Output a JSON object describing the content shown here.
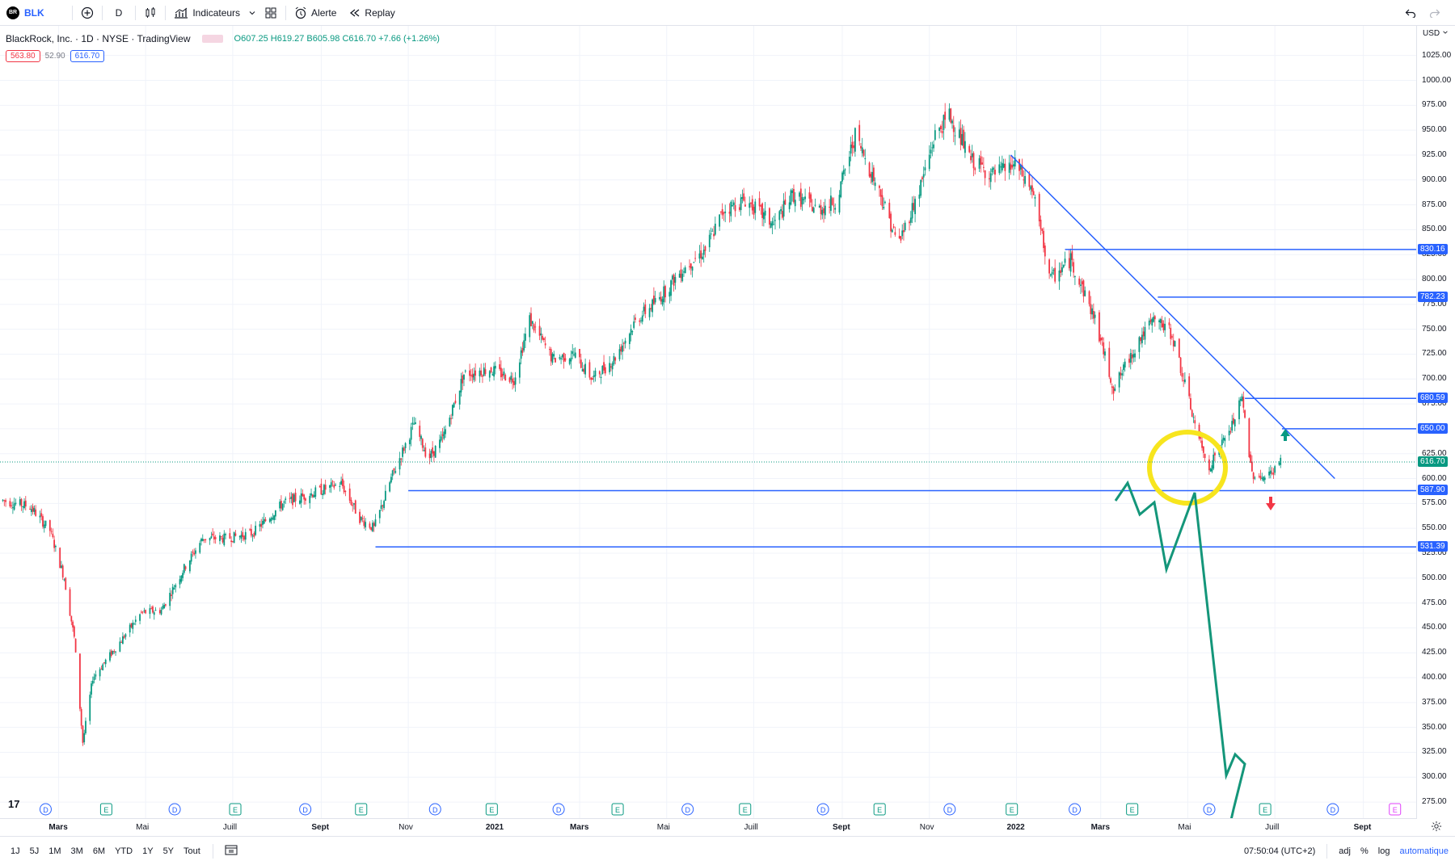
{
  "toolbar": {
    "symbol_logo": "BR",
    "symbol": "BLK",
    "add_icon": "plus-circle-icon",
    "interval": "D",
    "chart_type_icon": "candles-icon",
    "indicators_label": "Indicateurs",
    "templates_icon": "grid-icon",
    "alert_label": "Alerte",
    "replay_label": "Replay",
    "undo_icon": "undo-icon",
    "redo_icon": "redo-icon"
  },
  "legend": {
    "name": "BlackRock, Inc. · 1D · NYSE · TradingView",
    "ohlc": "O607.25 H619.27 B605.98 C616.70 +7.66 (+1.26%)",
    "sell": "563.80",
    "spread": "52.90",
    "buy": "616.70"
  },
  "price_axis": {
    "currency": "USD",
    "ticks": [
      "1025.00",
      "1000.00",
      "975.00",
      "950.00",
      "925.00",
      "900.00",
      "875.00",
      "850.00",
      "825.00",
      "800.00",
      "775.00",
      "750.00",
      "725.00",
      "700.00",
      "675.00",
      "650.00",
      "625.00",
      "600.00",
      "575.00",
      "550.00",
      "525.00",
      "500.00",
      "475.00",
      "450.00",
      "425.00",
      "400.00",
      "375.00",
      "350.00",
      "325.00",
      "300.00",
      "275.00"
    ],
    "levels": [
      "830.16",
      "782.23",
      "680.59",
      "650.00",
      "616.70",
      "587.90",
      "531.39"
    ]
  },
  "time_axis": {
    "labels": [
      "Mars",
      "Mai",
      "Juill",
      "Sept",
      "Nov",
      "2021",
      "Mars",
      "Mai",
      "Juill",
      "Sept",
      "Nov",
      "2022",
      "Mars",
      "Mai",
      "Juill",
      "Sept"
    ]
  },
  "events": [
    "D",
    "E",
    "D",
    "E",
    "D",
    "E",
    "D",
    "E",
    "D",
    "E",
    "D",
    "E",
    "D",
    "E",
    "D",
    "E",
    "D",
    "E",
    "D",
    "E",
    "D",
    "E"
  ],
  "bottombar": {
    "ranges": [
      "1J",
      "5J",
      "1M",
      "3M",
      "6M",
      "YTD",
      "1Y",
      "5Y",
      "Tout"
    ],
    "time": "07:50:04 (UTC+2)",
    "adj": "adj",
    "pct": "%",
    "log": "log",
    "auto": "automatique"
  },
  "tv_logo": "17",
  "colors": {
    "up": "#089981",
    "down": "#f23645",
    "line": "#2962ff",
    "highlight": "#f7e51e",
    "projection": "#14967a"
  },
  "chart_data": {
    "type": "candlestick",
    "title": "BlackRock, Inc. · 1D · NYSE",
    "ylim": [
      270,
      1040
    ],
    "x_range": [
      "2020-01-20",
      "2022-10-08"
    ],
    "close": [
      [
        "2020-01-22",
        578
      ],
      [
        "2020-02-10",
        572
      ],
      [
        "2020-02-24",
        548
      ],
      [
        "2020-03-05",
        500
      ],
      [
        "2020-03-12",
        440
      ],
      [
        "2020-03-18",
        335
      ],
      [
        "2020-03-25",
        400
      ],
      [
        "2020-04-10",
        430
      ],
      [
        "2020-04-28",
        465
      ],
      [
        "2020-05-12",
        468
      ],
      [
        "2020-05-28",
        510
      ],
      [
        "2020-06-10",
        540
      ],
      [
        "2020-06-26",
        540
      ],
      [
        "2020-07-15",
        545
      ],
      [
        "2020-08-05",
        575
      ],
      [
        "2020-08-25",
        585
      ],
      [
        "2020-09-15",
        595
      ],
      [
        "2020-09-28",
        560
      ],
      [
        "2020-10-08",
        550
      ],
      [
        "2020-10-20",
        600
      ],
      [
        "2020-11-05",
        655
      ],
      [
        "2020-11-15",
        620
      ],
      [
        "2020-11-25",
        640
      ],
      [
        "2020-12-10",
        705
      ],
      [
        "2020-12-28",
        710
      ],
      [
        "2021-01-14",
        700
      ],
      [
        "2021-01-25",
        760
      ],
      [
        "2021-02-10",
        720
      ],
      [
        "2021-02-25",
        725
      ],
      [
        "2021-03-10",
        700
      ],
      [
        "2021-03-25",
        720
      ],
      [
        "2021-04-10",
        760
      ],
      [
        "2021-04-25",
        780
      ],
      [
        "2021-05-12",
        810
      ],
      [
        "2021-05-28",
        830
      ],
      [
        "2021-06-10",
        870
      ],
      [
        "2021-06-25",
        880
      ],
      [
        "2021-07-15",
        855
      ],
      [
        "2021-07-28",
        885
      ],
      [
        "2021-08-15",
        870
      ],
      [
        "2021-08-28",
        880
      ],
      [
        "2021-09-10",
        945
      ],
      [
        "2021-09-28",
        885
      ],
      [
        "2021-10-10",
        835
      ],
      [
        "2021-10-25",
        890
      ],
      [
        "2021-11-05",
        945
      ],
      [
        "2021-11-15",
        965
      ],
      [
        "2021-11-30",
        920
      ],
      [
        "2021-12-15",
        905
      ],
      [
        "2021-12-31",
        915
      ],
      [
        "2022-01-12",
        890
      ],
      [
        "2022-01-25",
        800
      ],
      [
        "2022-02-08",
        820
      ],
      [
        "2022-02-25",
        760
      ],
      [
        "2022-03-10",
        690
      ],
      [
        "2022-03-28",
        740
      ],
      [
        "2022-04-08",
        760
      ],
      [
        "2022-04-20",
        745
      ],
      [
        "2022-05-05",
        660
      ],
      [
        "2022-05-15",
        610
      ],
      [
        "2022-05-31",
        650
      ],
      [
        "2022-06-08",
        680
      ],
      [
        "2022-06-15",
        605
      ],
      [
        "2022-06-25",
        600
      ],
      [
        "2022-07-05",
        616.7
      ]
    ],
    "horizontal_levels": [
      830.16,
      782.23,
      680.59,
      650.0,
      587.9,
      531.39
    ],
    "trendline": [
      [
        "2021-12-28",
        925
      ],
      [
        "2022-08-12",
        600
      ]
    ],
    "projection_path": [
      [
        1380,
        620
      ],
      [
        1395,
        598
      ],
      [
        1410,
        637
      ],
      [
        1428,
        622
      ],
      [
        1443,
        705
      ],
      [
        1478,
        610
      ],
      [
        1517,
        960
      ],
      [
        1528,
        934
      ],
      [
        1540,
        946
      ],
      [
        1526,
        1002
      ],
      [
        1512,
        1063
      ]
    ],
    "last_price": 616.7,
    "events_present": true
  }
}
